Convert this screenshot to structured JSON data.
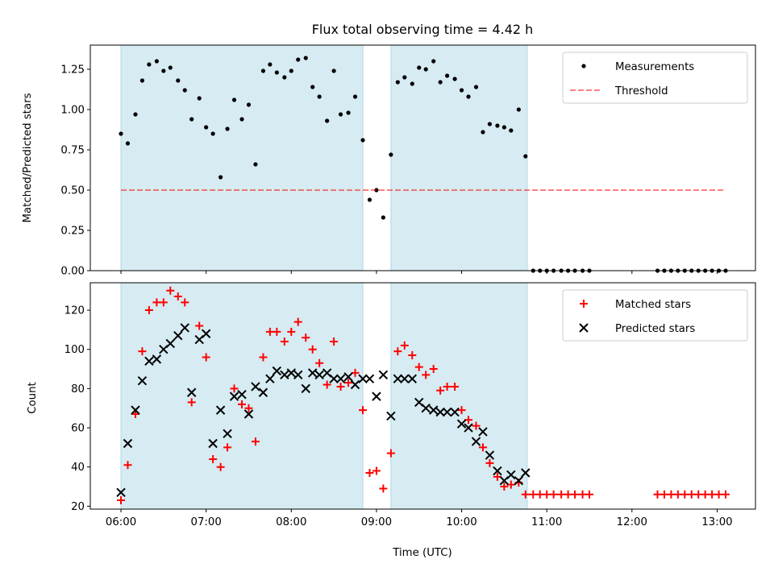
{
  "title": "Flux total observing time = 4.42 h",
  "colors": {
    "band": "#add8e6",
    "measurement": "#000000",
    "threshold": "#ff0000",
    "matched": "#ff0000",
    "predicted": "#000000"
  },
  "chart_data": [
    {
      "type": "scatter",
      "xlabel": "",
      "ylabel": "Matched/Predicted stars",
      "xlim": [
        5.64,
        13.45
      ],
      "ylim": [
        0,
        1.4
      ],
      "yticks": [
        0.0,
        0.25,
        0.5,
        0.75,
        1.0,
        1.25
      ],
      "ytick_labels": [
        "0.00",
        "0.25",
        "0.50",
        "0.75",
        "1.00",
        "1.25"
      ],
      "bands": [
        [
          6.0,
          8.84
        ],
        [
          9.17,
          10.77
        ]
      ],
      "legend_position": "upper right",
      "series": [
        {
          "name": "Measurements",
          "marker": "dot",
          "x": [
            6.0,
            6.08,
            6.17,
            6.25,
            6.33,
            6.42,
            6.5,
            6.58,
            6.67,
            6.75,
            6.83,
            6.92,
            7.0,
            7.08,
            7.17,
            7.25,
            7.33,
            7.42,
            7.5,
            7.58,
            7.67,
            7.75,
            7.83,
            7.92,
            8.0,
            8.08,
            8.17,
            8.25,
            8.33,
            8.42,
            8.5,
            8.58,
            8.67,
            8.75,
            8.84,
            8.92,
            9.0,
            9.08,
            9.17,
            9.25,
            9.33,
            9.42,
            9.5,
            9.58,
            9.67,
            9.75,
            9.83,
            9.92,
            10.0,
            10.08,
            10.17,
            10.25,
            10.33,
            10.42,
            10.5,
            10.58,
            10.67,
            10.75,
            10.84,
            10.92,
            11.0,
            11.08,
            11.17,
            11.25,
            11.33,
            11.42,
            11.5,
            12.3,
            12.38,
            12.46,
            12.54,
            12.62,
            12.7,
            12.78,
            12.86,
            12.94,
            13.02,
            13.1
          ],
          "y": [
            0.85,
            0.79,
            0.97,
            1.18,
            1.28,
            1.3,
            1.24,
            1.26,
            1.18,
            1.12,
            0.94,
            1.07,
            0.89,
            0.85,
            0.58,
            0.88,
            1.06,
            0.94,
            1.03,
            0.66,
            1.24,
            1.28,
            1.23,
            1.2,
            1.24,
            1.31,
            1.32,
            1.14,
            1.08,
            0.93,
            1.24,
            0.97,
            0.98,
            1.08,
            0.81,
            0.44,
            0.5,
            0.33,
            0.72,
            1.17,
            1.2,
            1.16,
            1.26,
            1.25,
            1.3,
            1.17,
            1.21,
            1.19,
            1.12,
            1.08,
            1.14,
            0.86,
            0.91,
            0.9,
            0.89,
            0.87,
            1.0,
            0.71,
            0.0,
            0.0,
            0.0,
            0.0,
            0.0,
            0.0,
            0.0,
            0.0,
            0.0,
            0.0,
            0.0,
            0.0,
            0.0,
            0.0,
            0.0,
            0.0,
            0.0,
            0.0,
            0.0,
            0.0
          ]
        },
        {
          "name": "Threshold",
          "marker": "dashed-line",
          "x": [
            6.0,
            13.1
          ],
          "y": [
            0.5,
            0.5
          ]
        }
      ]
    },
    {
      "type": "scatter",
      "xlabel": "Time (UTC)",
      "ylabel": "Count",
      "xlim": [
        5.64,
        13.45
      ],
      "ylim": [
        18.5,
        134
      ],
      "xticks": [
        6,
        7,
        8,
        9,
        10,
        11,
        12,
        13
      ],
      "xtick_labels": [
        "06:00",
        "07:00",
        "08:00",
        "09:00",
        "10:00",
        "11:00",
        "12:00",
        "13:00"
      ],
      "yticks": [
        20,
        40,
        60,
        80,
        100,
        120
      ],
      "ytick_labels": [
        "20",
        "40",
        "60",
        "80",
        "100",
        "120"
      ],
      "bands": [
        [
          6.0,
          8.84
        ],
        [
          9.17,
          10.77
        ]
      ],
      "legend_position": "upper right",
      "series": [
        {
          "name": "Matched stars",
          "marker": "plus",
          "x": [
            6.0,
            6.08,
            6.17,
            6.25,
            6.33,
            6.42,
            6.5,
            6.58,
            6.67,
            6.75,
            6.83,
            6.92,
            7.0,
            7.08,
            7.17,
            7.25,
            7.33,
            7.42,
            7.5,
            7.58,
            7.67,
            7.75,
            7.83,
            7.92,
            8.0,
            8.08,
            8.17,
            8.25,
            8.33,
            8.42,
            8.5,
            8.58,
            8.67,
            8.75,
            8.84,
            8.92,
            9.0,
            9.08,
            9.17,
            9.25,
            9.33,
            9.42,
            9.5,
            9.58,
            9.67,
            9.75,
            9.83,
            9.92,
            10.0,
            10.08,
            10.17,
            10.25,
            10.33,
            10.42,
            10.5,
            10.58,
            10.67,
            10.75,
            10.84,
            10.92,
            11.0,
            11.08,
            11.17,
            11.25,
            11.33,
            11.42,
            11.5,
            12.3,
            12.38,
            12.46,
            12.54,
            12.62,
            12.7,
            12.78,
            12.86,
            12.94,
            13.02,
            13.1
          ],
          "y": [
            23,
            41,
            67,
            99,
            120,
            124,
            124,
            130,
            127,
            124,
            73,
            112,
            96,
            44,
            40,
            50,
            80,
            72,
            70,
            53,
            96,
            109,
            109,
            104,
            109,
            114,
            106,
            100,
            93,
            82,
            104,
            81,
            83,
            88,
            69,
            37,
            38,
            29,
            47,
            99,
            102,
            97,
            91,
            87,
            90,
            79,
            81,
            81,
            69,
            64,
            61,
            50,
            42,
            35,
            30,
            31,
            32,
            26,
            26,
            26,
            26,
            26,
            26,
            26,
            26,
            26,
            26,
            26,
            26,
            26,
            26,
            26,
            26,
            26,
            26,
            26,
            26,
            26
          ]
        },
        {
          "name": "Predicted stars",
          "marker": "x",
          "x": [
            6.0,
            6.08,
            6.17,
            6.25,
            6.33,
            6.42,
            6.5,
            6.58,
            6.67,
            6.75,
            6.83,
            6.92,
            7.0,
            7.08,
            7.17,
            7.25,
            7.33,
            7.42,
            7.5,
            7.58,
            7.67,
            7.75,
            7.83,
            7.92,
            8.0,
            8.08,
            8.17,
            8.25,
            8.33,
            8.42,
            8.5,
            8.58,
            8.67,
            8.75,
            8.84,
            8.92,
            9.0,
            9.08,
            9.17,
            9.25,
            9.33,
            9.42,
            9.5,
            9.58,
            9.67,
            9.75,
            9.83,
            9.92,
            10.0,
            10.08,
            10.17,
            10.25,
            10.33,
            10.42,
            10.5,
            10.58,
            10.67,
            10.75
          ],
          "y": [
            27,
            52,
            69,
            84,
            94,
            95,
            100,
            103,
            107,
            111,
            78,
            105,
            108,
            52,
            69,
            57,
            76,
            77,
            67,
            81,
            78,
            85,
            89,
            87,
            88,
            87,
            80,
            88,
            87,
            88,
            85,
            85,
            86,
            82,
            85,
            85,
            76,
            87,
            66,
            85,
            85,
            85,
            73,
            70,
            69,
            68,
            68,
            68,
            62,
            60,
            53,
            58,
            46,
            38,
            33,
            36,
            33,
            37
          ]
        }
      ]
    }
  ]
}
